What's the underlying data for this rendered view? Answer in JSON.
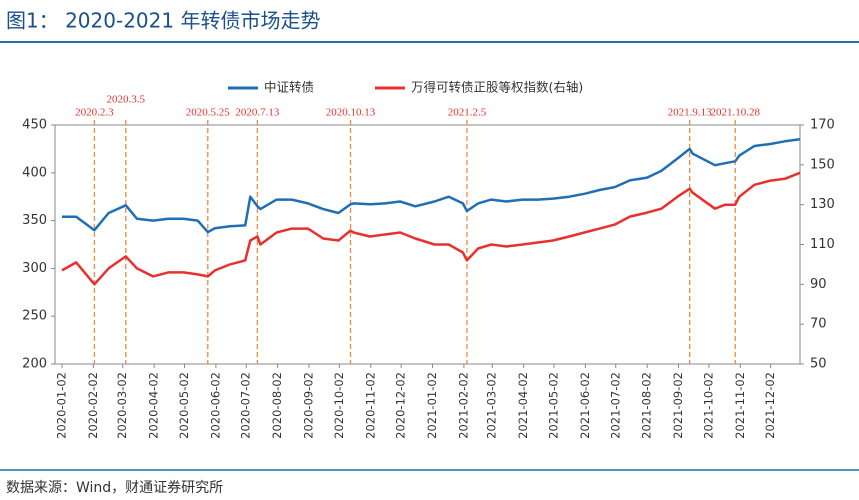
{
  "chart_data": {
    "type": "line",
    "title": "图1： 2020-2021 年转债市场走势",
    "source": "数据来源：Wind，财通证券研究所",
    "x": [
      "2020-01-02",
      "2020-01-16",
      "2020-02-03",
      "2020-02-17",
      "2020-03-05",
      "2020-03-16",
      "2020-04-01",
      "2020-04-16",
      "2020-05-01",
      "2020-05-15",
      "2020-05-25",
      "2020-06-01",
      "2020-06-16",
      "2020-07-01",
      "2020-07-06",
      "2020-07-13",
      "2020-07-16",
      "2020-08-01",
      "2020-08-16",
      "2020-09-01",
      "2020-09-16",
      "2020-10-01",
      "2020-10-13",
      "2020-10-16",
      "2020-11-01",
      "2020-11-16",
      "2020-12-01",
      "2020-12-16",
      "2021-01-04",
      "2021-01-18",
      "2021-02-01",
      "2021-02-05",
      "2021-02-16",
      "2021-03-01",
      "2021-03-16",
      "2021-04-01",
      "2021-04-16",
      "2021-05-01",
      "2021-05-17",
      "2021-06-01",
      "2021-06-16",
      "2021-07-01",
      "2021-07-16",
      "2021-08-02",
      "2021-08-16",
      "2021-09-01",
      "2021-09-13",
      "2021-09-16",
      "2021-10-08",
      "2021-10-18",
      "2021-10-28",
      "2021-11-01",
      "2021-11-16",
      "2021-12-01",
      "2021-12-16",
      "2021-12-31"
    ],
    "series": [
      {
        "name": "中证转债",
        "color": "#1f6fb5",
        "axis": "y",
        "values": [
          354,
          354,
          340,
          358,
          366,
          352,
          350,
          352,
          352,
          350,
          338,
          342,
          344,
          345,
          375,
          365,
          362,
          372,
          372,
          368,
          362,
          358,
          367,
          368,
          367,
          368,
          370,
          365,
          370,
          375,
          368,
          360,
          368,
          372,
          370,
          372,
          372,
          373,
          375,
          378,
          382,
          385,
          392,
          395,
          402,
          415,
          425,
          420,
          408,
          410,
          412,
          418,
          428,
          430,
          433,
          435
        ]
      },
      {
        "name": "万得可转债正股等权指数(右轴)",
        "color": "#e8312f",
        "axis": "y2",
        "values": [
          97,
          101,
          90,
          98,
          104,
          98,
          94,
          96,
          96,
          95,
          94,
          97,
          100,
          102,
          112,
          114,
          110,
          116,
          118,
          118,
          113,
          112,
          117,
          116,
          114,
          115,
          116,
          113,
          110,
          110,
          106,
          102,
          108,
          110,
          109,
          110,
          111,
          112,
          114,
          116,
          118,
          120,
          124,
          126,
          128,
          134,
          138,
          136,
          128,
          130,
          130,
          134,
          140,
          142,
          143,
          146
        ]
      }
    ],
    "xlim": [
      "2020-01-02",
      "2021-12-31"
    ],
    "xticks": [
      "2020-01-02",
      "2020-02-02",
      "2020-03-02",
      "2020-04-02",
      "2020-05-02",
      "2020-06-02",
      "2020-07-02",
      "2020-08-02",
      "2020-09-02",
      "2020-10-02",
      "2020-11-02",
      "2020-12-02",
      "2021-01-02",
      "2021-02-02",
      "2021-03-02",
      "2021-04-02",
      "2021-05-02",
      "2021-06-02",
      "2021-07-02",
      "2021-08-02",
      "2021-09-02",
      "2021-10-02",
      "2021-11-02",
      "2021-12-02"
    ],
    "ylim": [
      200,
      450
    ],
    "yticks": [
      200,
      250,
      300,
      350,
      400,
      450
    ],
    "y2lim": [
      50,
      170
    ],
    "y2ticks": [
      50,
      70,
      90,
      110,
      130,
      150,
      170
    ],
    "annotations": [
      {
        "x": "2020-02-03",
        "label": "2020.2.3"
      },
      {
        "x": "2020-03-05",
        "label": "2020.3.5"
      },
      {
        "x": "2020-05-25",
        "label": "2020.5.25"
      },
      {
        "x": "2020-07-13",
        "label": "2020.7.13"
      },
      {
        "x": "2020-10-13",
        "label": "2020.10.13"
      },
      {
        "x": "2021-02-05",
        "label": "2021.2.5"
      },
      {
        "x": "2021-09-13",
        "label": "2021.9.13"
      },
      {
        "x": "2021-10-28",
        "label": "2021.10.28"
      }
    ]
  }
}
